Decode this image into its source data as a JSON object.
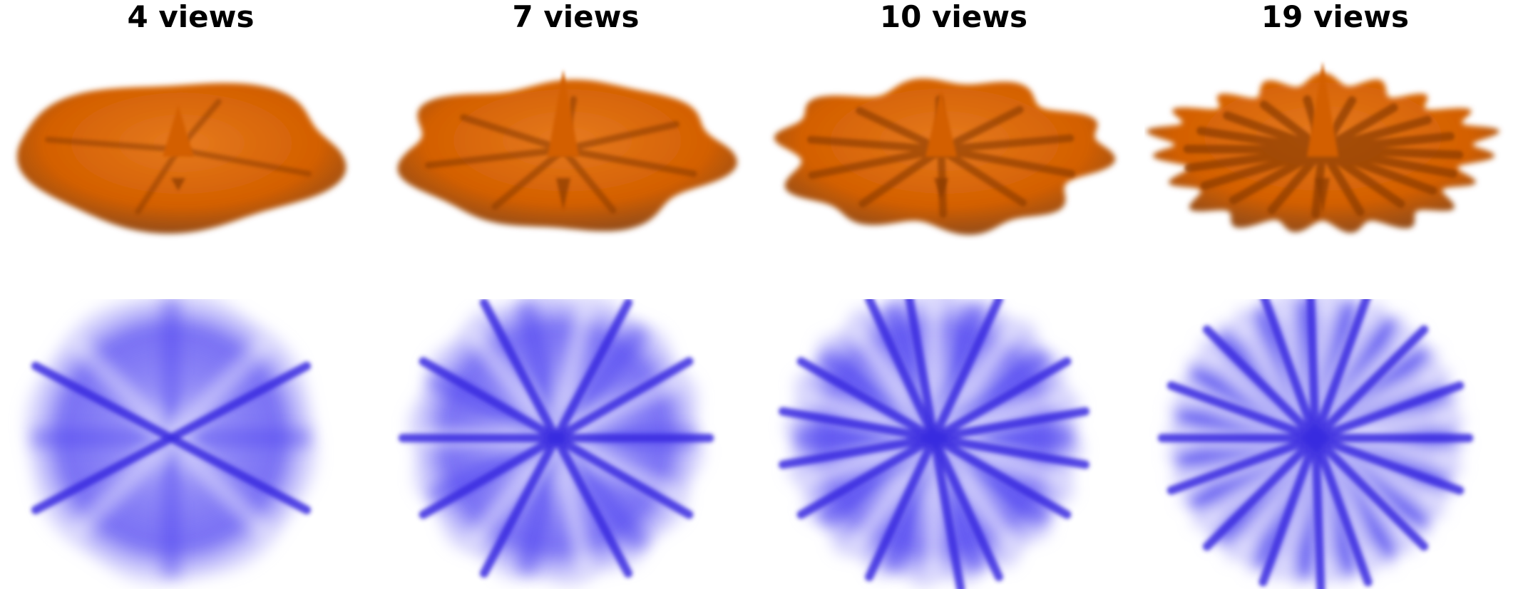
{
  "figure": {
    "columns": [
      {
        "title": "4 views",
        "peak": 0.3,
        "rays": 4,
        "streak_angles": [
          -28,
          28
        ],
        "detail": 0.4
      },
      {
        "title": "7 views",
        "peak": 0.75,
        "rays": 7,
        "streak_angles": [
          0,
          -30,
          30,
          -62,
          62
        ],
        "detail": 0.6
      },
      {
        "title": "10 views",
        "peak": 0.5,
        "rays": 10,
        "streak_angles": [
          -65,
          65,
          -30,
          30,
          -10,
          10,
          80
        ],
        "detail": 0.8
      },
      {
        "title": "19 views",
        "peak": 0.85,
        "rays": 19,
        "streak_angles": [
          0,
          -20,
          20,
          -45,
          45,
          -70,
          70,
          88
        ],
        "detail": 1.0
      }
    ],
    "colors": {
      "surface": "#d35f00",
      "surface_dark": "#8a3a00",
      "surface_light": "#e67a20",
      "projection": "#4b3ff0",
      "projection_light": "#b9b5fb",
      "streak": "#3a2ae0"
    }
  }
}
